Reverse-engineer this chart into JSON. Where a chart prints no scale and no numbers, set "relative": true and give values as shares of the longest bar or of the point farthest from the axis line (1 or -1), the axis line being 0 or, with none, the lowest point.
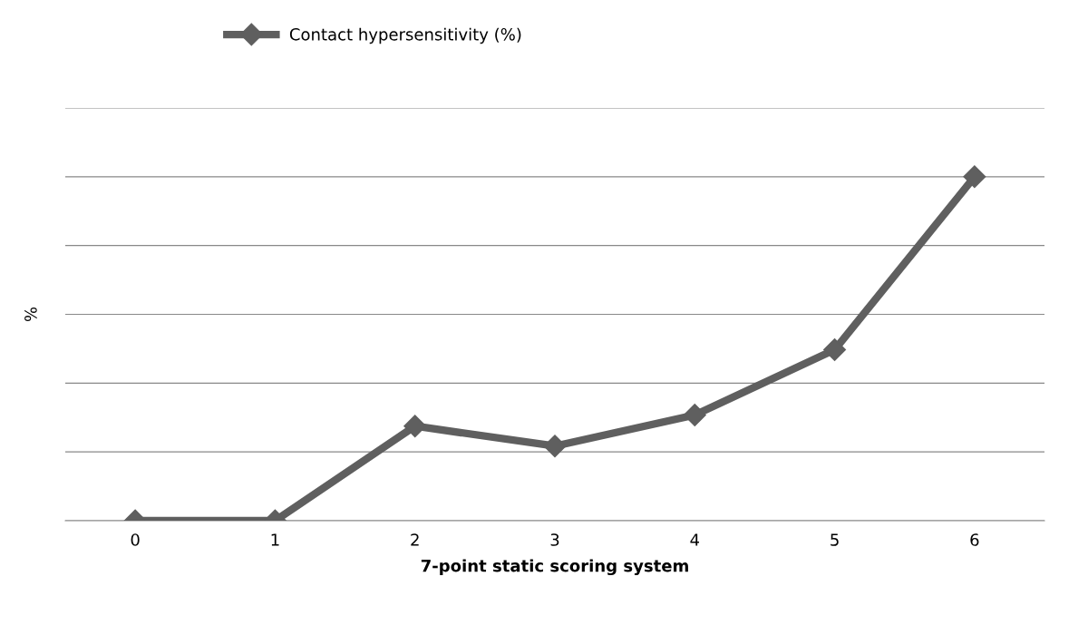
{
  "chart_data": {
    "type": "line",
    "relative": true,
    "xlabel": "7-point static scoring system",
    "ylabel": "%",
    "categories": [
      "0",
      "1",
      "2",
      "3",
      "4",
      "5",
      "6"
    ],
    "series": [
      {
        "name": "Contact hypersensitivity (%)",
        "color": "#5f5f5f",
        "values": [
          0,
          0,
          0.275,
          0.217,
          0.307,
          0.497,
          1
        ]
      }
    ],
    "marker": "diamond",
    "line_style": "solid",
    "grid": "y",
    "legend": "top",
    "tick_labels": "x"
  }
}
